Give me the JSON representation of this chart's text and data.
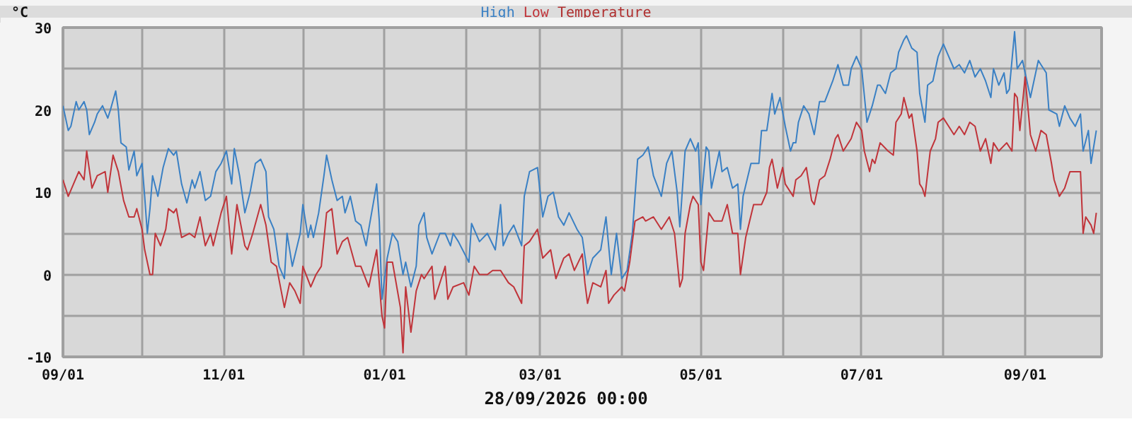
{
  "chart_data": {
    "type": "line",
    "title": "Temperature",
    "ylabel": "°C",
    "annotations": [
      "28/09/2026 00:00"
    ],
    "legend": "top",
    "grid": true,
    "marker": "none",
    "line_style": "solid",
    "xlim": [
      "2025-09-01",
      "2026-09-30"
    ],
    "xticks": [
      {
        "value": "2025-09-01",
        "label": "09/01"
      },
      {
        "value": "2025-10-01",
        "label": null
      },
      {
        "value": "2025-11-01",
        "label": "11/01"
      },
      {
        "value": "2025-12-01",
        "label": null
      },
      {
        "value": "2026-01-01",
        "label": "01/01"
      },
      {
        "value": "2026-02-01",
        "label": null
      },
      {
        "value": "2026-03-01",
        "label": "03/01"
      },
      {
        "value": "2026-04-01",
        "label": null
      },
      {
        "value": "2026-05-01",
        "label": "05/01"
      },
      {
        "value": "2026-06-01",
        "label": null
      },
      {
        "value": "2026-07-01",
        "label": "07/01"
      },
      {
        "value": "2026-08-01",
        "label": null
      },
      {
        "value": "2026-09-01",
        "label": "09/01"
      }
    ],
    "ylim": [
      -10,
      30
    ],
    "yticks": [
      -10,
      {
        "value": -5,
        "label": null
      },
      0,
      {
        "value": 5,
        "label": null
      },
      10,
      {
        "value": 15,
        "label": null
      },
      20,
      {
        "value": 25,
        "label": null
      },
      30
    ],
    "series": [
      {
        "name": "High",
        "color": "#3a80c4",
        "x": [
          "2025-09-01",
          "2025-09-03",
          "2025-09-04",
          "2025-09-06",
          "2025-09-07",
          "2025-09-09",
          "2025-09-10",
          "2025-09-11",
          "2025-09-13",
          "2025-09-14",
          "2025-09-16",
          "2025-09-18",
          "2025-09-19",
          "2025-09-21",
          "2025-09-22",
          "2025-09-23",
          "2025-09-25",
          "2025-09-26",
          "2025-09-28",
          "2025-09-29",
          "2025-10-01",
          "2025-10-02",
          "2025-10-03",
          "2025-10-04",
          "2025-10-05",
          "2025-10-07",
          "2025-10-09",
          "2025-10-11",
          "2025-10-13",
          "2025-10-14",
          "2025-10-16",
          "2025-10-18",
          "2025-10-20",
          "2025-10-21",
          "2025-10-23",
          "2025-10-25",
          "2025-10-27",
          "2025-10-29",
          "2025-10-31",
          "2025-11-02",
          "2025-11-04",
          "2025-11-05",
          "2025-11-07",
          "2025-11-09",
          "2025-11-11",
          "2025-11-13",
          "2025-11-15",
          "2025-11-17",
          "2025-11-18",
          "2025-11-20",
          "2025-11-22",
          "2025-11-24",
          "2025-11-25",
          "2025-11-27",
          "2025-11-30",
          "2025-12-01",
          "2025-12-03",
          "2025-12-04",
          "2025-12-05",
          "2025-12-07",
          "2025-12-09",
          "2025-12-10",
          "2025-12-12",
          "2025-12-14",
          "2025-12-16",
          "2025-12-17",
          "2025-12-19",
          "2025-12-21",
          "2025-12-23",
          "2025-12-25",
          "2025-12-26",
          "2025-12-29",
          "2025-12-30",
          "2025-12-31",
          "2026-01-02",
          "2026-01-04",
          "2026-01-06",
          "2026-01-08",
          "2026-01-09",
          "2026-01-11",
          "2026-01-13",
          "2026-01-14",
          "2026-01-16",
          "2026-01-17",
          "2026-01-19",
          "2026-01-22",
          "2026-01-24",
          "2026-01-26",
          "2026-01-27",
          "2026-01-29",
          "2026-02-02",
          "2026-02-03",
          "2026-02-06",
          "2026-02-09",
          "2026-02-12",
          "2026-02-14",
          "2026-02-15",
          "2026-02-17",
          "2026-02-19",
          "2026-02-22",
          "2026-02-23",
          "2026-02-25",
          "2026-02-28",
          "2026-03-01",
          "2026-03-02",
          "2026-03-04",
          "2026-03-06",
          "2026-03-08",
          "2026-03-10",
          "2026-03-12",
          "2026-03-15",
          "2026-03-17",
          "2026-03-19",
          "2026-03-21",
          "2026-03-24",
          "2026-03-26",
          "2026-03-28",
          "2026-03-30",
          "2026-04-01",
          "2026-04-03",
          "2026-04-05",
          "2026-04-07",
          "2026-04-09",
          "2026-04-11",
          "2026-04-13",
          "2026-04-16",
          "2026-04-18",
          "2026-04-20",
          "2026-04-22",
          "2026-04-23",
          "2026-04-25",
          "2026-04-27",
          "2026-04-29",
          "2026-04-30",
          "2026-05-01",
          "2026-05-03",
          "2026-05-04",
          "2026-05-05",
          "2026-05-08",
          "2026-05-09",
          "2026-05-11",
          "2026-05-13",
          "2026-05-15",
          "2026-05-16",
          "2026-05-17",
          "2026-05-20",
          "2026-05-23",
          "2026-05-24",
          "2026-05-26",
          "2026-05-28",
          "2026-05-29",
          "2026-05-31",
          "2026-06-02",
          "2026-06-04",
          "2026-06-05",
          "2026-06-06",
          "2026-06-07",
          "2026-06-09",
          "2026-06-11",
          "2026-06-13",
          "2026-06-15",
          "2026-06-17",
          "2026-06-20",
          "2026-06-22",
          "2026-06-24",
          "2026-06-26",
          "2026-06-27",
          "2026-06-29",
          "2026-07-01",
          "2026-07-03",
          "2026-07-05",
          "2026-07-07",
          "2026-07-08",
          "2026-07-10",
          "2026-07-12",
          "2026-07-14",
          "2026-07-15",
          "2026-07-17",
          "2026-07-18",
          "2026-07-20",
          "2026-07-22",
          "2026-07-23",
          "2026-07-25",
          "2026-07-26",
          "2026-07-28",
          "2026-07-30",
          "2026-08-01",
          "2026-08-03",
          "2026-08-05",
          "2026-08-07",
          "2026-08-09",
          "2026-08-11",
          "2026-08-13",
          "2026-08-15",
          "2026-08-17",
          "2026-08-19",
          "2026-08-20",
          "2026-08-22",
          "2026-08-24",
          "2026-08-25",
          "2026-08-26",
          "2026-08-28",
          "2026-08-29",
          "2026-08-31",
          "2026-09-01",
          "2026-09-03",
          "2026-09-06",
          "2026-09-07",
          "2026-09-09",
          "2026-09-10",
          "2026-09-13",
          "2026-09-14",
          "2026-09-16",
          "2026-09-18",
          "2026-09-20",
          "2026-09-22",
          "2026-09-23",
          "2026-09-25",
          "2026-09-26",
          "2026-09-28"
        ],
        "values": [
          20.5,
          17.5,
          18,
          21,
          20,
          21,
          20,
          17,
          18.5,
          19.5,
          20.5,
          19,
          20,
          22.3,
          20,
          16,
          15.5,
          12.7,
          15,
          12,
          13.5,
          9.5,
          5,
          8,
          12,
          9.5,
          13,
          15.3,
          14.5,
          15,
          11,
          8.7,
          11.5,
          10.5,
          12.5,
          9,
          9.5,
          12.5,
          13.5,
          15,
          11,
          15.3,
          12,
          7.5,
          10,
          13.5,
          14,
          12.5,
          7,
          5.5,
          1,
          -0.5,
          5,
          1,
          5,
          8.5,
          4.5,
          6,
          4.5,
          7.5,
          12,
          14.5,
          11.5,
          9,
          9.5,
          7.5,
          9.5,
          6.5,
          6,
          3.5,
          5.5,
          11,
          6.5,
          -3,
          2,
          5,
          4,
          0,
          1.5,
          -1.5,
          1,
          6,
          7.5,
          4.5,
          2.5,
          5,
          5,
          3.5,
          5,
          4,
          1.5,
          6.2,
          4,
          5,
          3,
          8.5,
          3.5,
          5,
          6,
          3.5,
          9.5,
          12.5,
          13,
          10,
          7,
          9.5,
          10,
          7,
          6,
          7.5,
          5.5,
          4.5,
          0,
          2,
          3,
          7,
          0,
          5,
          -0.5,
          0.5,
          5,
          14,
          14.5,
          15.5,
          12,
          9.5,
          13.5,
          15,
          10,
          5.8,
          15,
          16.5,
          15,
          16,
          8.5,
          15.5,
          15,
          10.5,
          15,
          12.5,
          13,
          10.5,
          11,
          5.5,
          9.5,
          13.5,
          13.5,
          17.5,
          17.5,
          22,
          19.5,
          21.5,
          18,
          15,
          16,
          16,
          18.5,
          20.5,
          19.5,
          17,
          21,
          21,
          23.5,
          25.5,
          23,
          23,
          25,
          26.5,
          25,
          18.5,
          20.5,
          23,
          23,
          22,
          24.5,
          25,
          27,
          28.5,
          29,
          27.5,
          27,
          22,
          18.5,
          23,
          23.5,
          26.5,
          28,
          26.5,
          25,
          25.5,
          24.5,
          26,
          24,
          25,
          23.5,
          21.5,
          25,
          23,
          24.5,
          22,
          22.5,
          29.5,
          25,
          26,
          24.5,
          21.5,
          26,
          25.5,
          24.5,
          20,
          19.5,
          18,
          20.5,
          19,
          18,
          19.5,
          15,
          17.5,
          13.5,
          17.5
        ]
      },
      {
        "name": "Low",
        "color": "#c0343a",
        "x": [
          "2025-09-01",
          "2025-09-03",
          "2025-09-05",
          "2025-09-07",
          "2025-09-09",
          "2025-09-10",
          "2025-09-12",
          "2025-09-14",
          "2025-09-17",
          "2025-09-18",
          "2025-09-20",
          "2025-09-22",
          "2025-09-24",
          "2025-09-26",
          "2025-09-28",
          "2025-09-29",
          "2025-10-01",
          "2025-10-02",
          "2025-10-04",
          "2025-10-05",
          "2025-10-06",
          "2025-10-08",
          "2025-10-10",
          "2025-10-11",
          "2025-10-13",
          "2025-10-14",
          "2025-10-16",
          "2025-10-19",
          "2025-10-21",
          "2025-10-23",
          "2025-10-25",
          "2025-10-27",
          "2025-10-28",
          "2025-10-31",
          "2025-11-02",
          "2025-11-04",
          "2025-11-06",
          "2025-11-09",
          "2025-11-10",
          "2025-11-12",
          "2025-11-15",
          "2025-11-17",
          "2025-11-19",
          "2025-11-21",
          "2025-11-24",
          "2025-11-26",
          "2025-11-28",
          "2025-11-30",
          "2025-12-01",
          "2025-12-04",
          "2025-12-06",
          "2025-12-08",
          "2025-12-10",
          "2025-12-12",
          "2025-12-14",
          "2025-12-16",
          "2025-12-18",
          "2025-12-21",
          "2025-12-23",
          "2025-12-26",
          "2025-12-29",
          "2025-12-31",
          "2026-01-01",
          "2026-01-02",
          "2026-01-04",
          "2026-01-07",
          "2026-01-08",
          "2026-01-09",
          "2026-01-11",
          "2026-01-13",
          "2026-01-15",
          "2026-01-16",
          "2026-01-19",
          "2026-01-20",
          "2026-01-24",
          "2026-01-25",
          "2026-01-27",
          "2026-01-31",
          "2026-02-02",
          "2026-02-04",
          "2026-02-06",
          "2026-02-09",
          "2026-02-11",
          "2026-02-14",
          "2026-02-17",
          "2026-02-19",
          "2026-02-22",
          "2026-02-23",
          "2026-02-25",
          "2026-02-28",
          "2026-03-02",
          "2026-03-05",
          "2026-03-07",
          "2026-03-10",
          "2026-03-12",
          "2026-03-14",
          "2026-03-17",
          "2026-03-18",
          "2026-03-19",
          "2026-03-21",
          "2026-03-24",
          "2026-03-26",
          "2026-03-27",
          "2026-03-29",
          "2026-04-01",
          "2026-04-02",
          "2026-04-04",
          "2026-04-06",
          "2026-04-09",
          "2026-04-10",
          "2026-04-13",
          "2026-04-16",
          "2026-04-19",
          "2026-04-21",
          "2026-04-23",
          "2026-04-24",
          "2026-04-25",
          "2026-04-27",
          "2026-04-28",
          "2026-04-30",
          "2026-05-01",
          "2026-05-02",
          "2026-05-04",
          "2026-05-06",
          "2026-05-09",
          "2026-05-11",
          "2026-05-13",
          "2026-05-15",
          "2026-05-16",
          "2026-05-18",
          "2026-05-21",
          "2026-05-24",
          "2026-05-26",
          "2026-05-27",
          "2026-05-28",
          "2026-05-30",
          "2026-06-01",
          "2026-06-02",
          "2026-06-05",
          "2026-06-06",
          "2026-06-08",
          "2026-06-10",
          "2026-06-12",
          "2026-06-13",
          "2026-06-15",
          "2026-06-17",
          "2026-06-19",
          "2026-06-21",
          "2026-06-22",
          "2026-06-24",
          "2026-06-27",
          "2026-06-29",
          "2026-07-01",
          "2026-07-02",
          "2026-07-04",
          "2026-07-05",
          "2026-07-06",
          "2026-07-08",
          "2026-07-11",
          "2026-07-13",
          "2026-07-14",
          "2026-07-16",
          "2026-07-17",
          "2026-07-19",
          "2026-07-20",
          "2026-07-22",
          "2026-07-23",
          "2026-07-24",
          "2026-07-25",
          "2026-07-27",
          "2026-07-29",
          "2026-07-30",
          "2026-08-01",
          "2026-08-03",
          "2026-08-05",
          "2026-08-07",
          "2026-08-09",
          "2026-08-11",
          "2026-08-13",
          "2026-08-15",
          "2026-08-17",
          "2026-08-19",
          "2026-08-20",
          "2026-08-22",
          "2026-08-25",
          "2026-08-27",
          "2026-08-28",
          "2026-08-29",
          "2026-08-30",
          "2026-09-01",
          "2026-09-03",
          "2026-09-05",
          "2026-09-07",
          "2026-09-09",
          "2026-09-11",
          "2026-09-12",
          "2026-09-14",
          "2026-09-16",
          "2026-09-18",
          "2026-09-20",
          "2026-09-22",
          "2026-09-23",
          "2026-09-24",
          "2026-09-26",
          "2026-09-27",
          "2026-09-28"
        ],
        "values": [
          11.5,
          9.5,
          11,
          12.5,
          11.5,
          15,
          10.5,
          12,
          12.5,
          10,
          14.5,
          12.5,
          9,
          7,
          7,
          8,
          5.5,
          3,
          0,
          0,
          5,
          3.5,
          5.5,
          8,
          7.5,
          8,
          4.5,
          5,
          4.5,
          7,
          3.5,
          5,
          3.5,
          7.5,
          9.5,
          2.5,
          8.5,
          3.5,
          3,
          5,
          8.5,
          6,
          1.5,
          1,
          -4,
          -1,
          -2,
          -3.5,
          1,
          -1.5,
          0,
          1,
          7.5,
          8,
          2.5,
          4,
          4.5,
          1,
          1,
          -1.5,
          3,
          -5,
          -6.5,
          1.5,
          1.5,
          -4,
          -9.5,
          -1.5,
          -7,
          -2,
          0,
          -0.5,
          1,
          -3,
          1,
          -3,
          -1.5,
          -1,
          -2.5,
          1,
          0,
          0,
          0.5,
          0.5,
          -1,
          -1.5,
          -3.5,
          3.5,
          4,
          5.5,
          2,
          3,
          -0.5,
          2,
          2.5,
          0.5,
          2.5,
          -1,
          -3.5,
          -1,
          -1.5,
          0.5,
          -3.5,
          -2.5,
          -1.5,
          -2,
          1.5,
          6.5,
          7,
          6.5,
          7,
          5.5,
          7,
          5,
          -1.5,
          -0.5,
          5,
          8.5,
          9.5,
          8.5,
          1.5,
          0.5,
          7.5,
          6.5,
          6.5,
          8.5,
          5,
          5,
          0,
          4.5,
          8.5,
          8.5,
          10,
          13,
          14,
          10.5,
          13,
          11,
          9.5,
          11.5,
          12,
          13,
          9,
          8.5,
          11.5,
          12,
          14,
          16.5,
          17,
          15,
          16.5,
          18.5,
          17.5,
          15,
          12.5,
          14,
          13.5,
          16,
          15,
          14.5,
          18.5,
          19.5,
          21.5,
          19,
          19.5,
          15,
          11,
          10.5,
          9.5,
          15,
          16.5,
          18.5,
          19,
          18,
          17,
          18,
          17,
          18.5,
          18,
          15,
          16.5,
          13.5,
          16,
          15,
          16,
          15,
          22,
          21.5,
          17.5,
          24,
          17,
          15,
          17.5,
          17,
          13.5,
          11.5,
          9.5,
          10.5,
          12.5,
          12.5,
          12.5,
          5,
          7,
          6,
          5,
          7.5
        ]
      }
    ]
  }
}
